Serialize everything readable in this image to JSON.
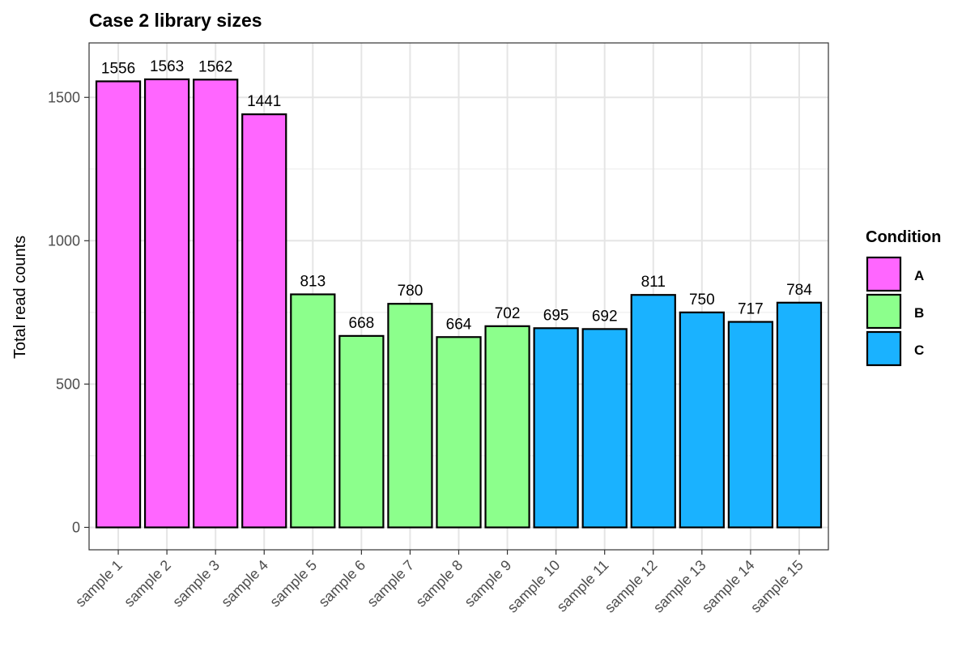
{
  "chart_data": {
    "type": "bar",
    "title": "Case 2 library sizes",
    "xlabel": "",
    "ylabel": "Total read counts",
    "ylim": [
      -78,
      1690
    ],
    "yticks": [
      0,
      500,
      1000,
      1500
    ],
    "grid": true,
    "legend_position": "right",
    "legend_title": "Condition",
    "groups": [
      {
        "name": "A",
        "color": "#FF66FF"
      },
      {
        "name": "B",
        "color": "#8CFF8C"
      },
      {
        "name": "C",
        "color": "#1AB2FF"
      }
    ],
    "categories": [
      "sample 1",
      "sample 2",
      "sample 3",
      "sample 4",
      "sample 5",
      "sample 6",
      "sample 7",
      "sample 8",
      "sample 9",
      "sample 10",
      "sample 11",
      "sample 12",
      "sample 13",
      "sample 14",
      "sample 15"
    ],
    "values": [
      1556,
      1563,
      1562,
      1441,
      813,
      668,
      780,
      664,
      702,
      695,
      692,
      811,
      750,
      717,
      784
    ],
    "condition": [
      "A",
      "A",
      "A",
      "A",
      "B",
      "B",
      "B",
      "B",
      "B",
      "C",
      "C",
      "C",
      "C",
      "C",
      "C"
    ],
    "data_labels": [
      "1556",
      "1563",
      "1562",
      "1441",
      "813",
      "668",
      "780",
      "664",
      "702",
      "695",
      "692",
      "811",
      "750",
      "717",
      "784"
    ]
  }
}
